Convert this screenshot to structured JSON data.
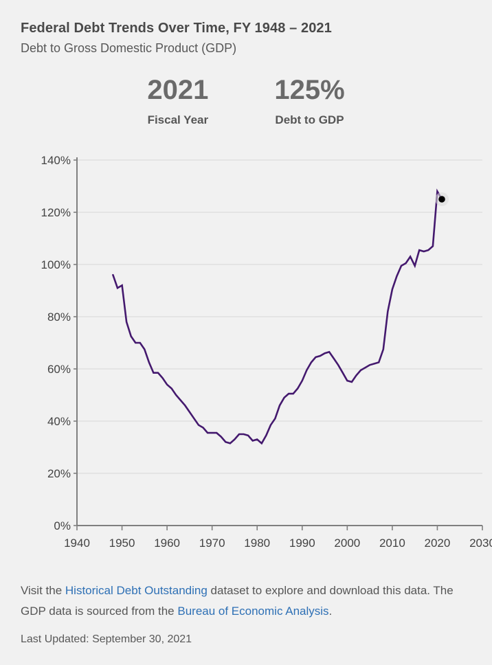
{
  "page": {
    "title": "Federal Debt Trends Over Time, FY 1948 – 2021",
    "subtitle": "Debt to Gross Domestic Product (GDP)"
  },
  "stats": {
    "fiscal_year": {
      "value": "2021",
      "label": "Fiscal Year"
    },
    "debt_to_gdp": {
      "value": "125%",
      "label": "Debt to GDP"
    }
  },
  "footer": {
    "text_before_link1": "Visit the ",
    "link1": "Historical Debt Outstanding",
    "text_between": " dataset to explore and download this data. The GDP data is sourced from the ",
    "link2": "Bureau of Economic Analysis",
    "text_after": ".",
    "last_updated": "Last Updated: September 30, 2021"
  },
  "colors": {
    "background": "#f1f1f1",
    "line": "#44196e",
    "marker": "#000000",
    "marker_halo": "#d8d8d8",
    "grid": "#dcdcdc",
    "axis": "#7f7f7f",
    "axis_text": "#434343",
    "link": "#2e70b5",
    "heading": "#494949",
    "stat_text": "#6a6a6a"
  },
  "chart_data": {
    "type": "line",
    "title": "Debt to Gross Domestic Product (GDP), FY 1948 – 2021",
    "xlabel": "",
    "ylabel": "",
    "xlim": [
      1940,
      2030
    ],
    "ylim": [
      0,
      140
    ],
    "x_ticks": [
      1940,
      1950,
      1960,
      1970,
      1980,
      1990,
      2000,
      2010,
      2020,
      2030
    ],
    "y_ticks": [
      0,
      20,
      40,
      60,
      80,
      100,
      120,
      140
    ],
    "y_tick_suffix": "%",
    "grid": "horizontal",
    "legend": "none",
    "x": [
      1948,
      1949,
      1950,
      1951,
      1952,
      1953,
      1954,
      1955,
      1956,
      1957,
      1958,
      1959,
      1960,
      1961,
      1962,
      1963,
      1964,
      1965,
      1966,
      1967,
      1968,
      1969,
      1970,
      1971,
      1972,
      1973,
      1974,
      1975,
      1976,
      1977,
      1978,
      1979,
      1980,
      1981,
      1982,
      1983,
      1984,
      1985,
      1986,
      1987,
      1988,
      1989,
      1990,
      1991,
      1992,
      1993,
      1994,
      1995,
      1996,
      1997,
      1998,
      1999,
      2000,
      2001,
      2002,
      2003,
      2004,
      2005,
      2006,
      2007,
      2008,
      2009,
      2010,
      2011,
      2012,
      2013,
      2014,
      2015,
      2016,
      2017,
      2018,
      2019,
      2020,
      2021
    ],
    "series": [
      {
        "name": "Debt to GDP (%)",
        "values": [
          96,
          91,
          92,
          78,
          72.5,
          70,
          70,
          67.5,
          62.5,
          58.5,
          58.5,
          56.5,
          54,
          52.5,
          50,
          48,
          46,
          43.5,
          41,
          38.5,
          37.5,
          35.5,
          35.5,
          35.5,
          34,
          32,
          31.5,
          33,
          35,
          35,
          34.5,
          32.5,
          33,
          31.5,
          34.5,
          38.5,
          41,
          46,
          49,
          50.5,
          50.5,
          52.5,
          55.5,
          59.5,
          62.5,
          64.5,
          65,
          66,
          66.5,
          64,
          61.5,
          58.5,
          55.5,
          55,
          57.5,
          59.5,
          60.5,
          61.5,
          62,
          62.5,
          67.5,
          82,
          90.5,
          95.5,
          99.5,
          100.5,
          103,
          99.5,
          105.5,
          105,
          105.5,
          107,
          128,
          125
        ]
      }
    ],
    "end_marker": {
      "x": 2021,
      "y": 125
    }
  }
}
